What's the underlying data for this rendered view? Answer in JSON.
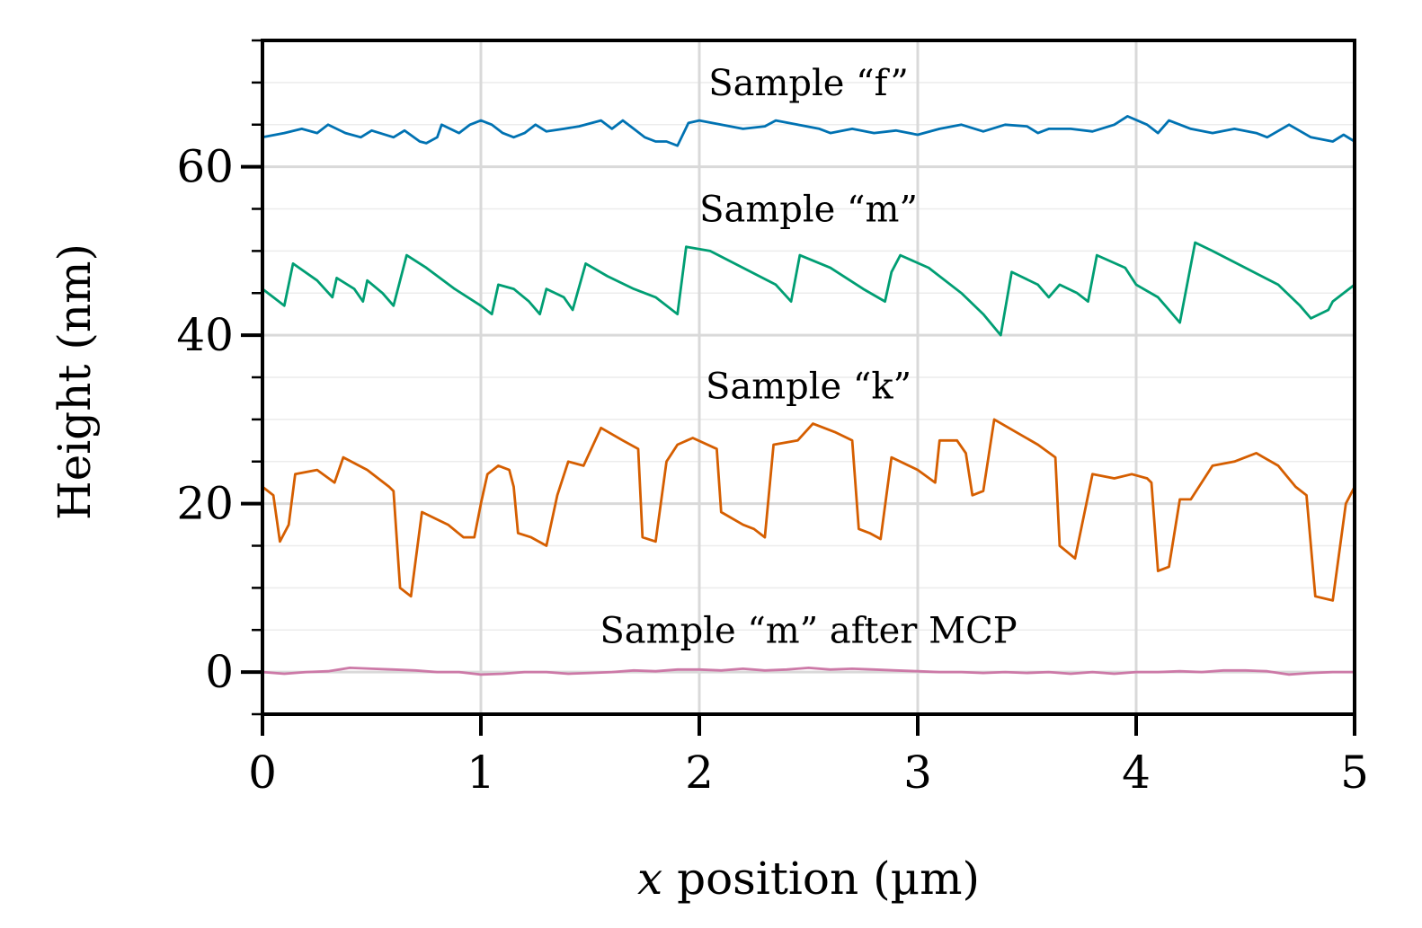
{
  "chart_data": {
    "type": "line",
    "xlabel": "x position (µm)",
    "xlabel_var": "x",
    "xlabel_rest": " position (µm)",
    "ylabel": "Height (nm)",
    "xlim": [
      0,
      5
    ],
    "ylim": [
      -5,
      75
    ],
    "x_ticks": [
      {
        "value": 0,
        "label": "0"
      },
      {
        "value": 1,
        "label": "1"
      },
      {
        "value": 2,
        "label": "2"
      },
      {
        "value": 3,
        "label": "3"
      },
      {
        "value": 4,
        "label": "4"
      },
      {
        "value": 5,
        "label": "5"
      }
    ],
    "y_ticks": [
      {
        "value": 0,
        "label": "0"
      },
      {
        "value": 20,
        "label": "20"
      },
      {
        "value": 40,
        "label": "40"
      },
      {
        "value": 60,
        "label": "60"
      }
    ],
    "y_minor_step": 5,
    "grid": true,
    "series": [
      {
        "name": "Sample “f”",
        "color": "#0072b2",
        "label_pos": {
          "x": 2.5,
          "y": 68.5
        },
        "points": [
          [
            0,
            63.5
          ],
          [
            0.1,
            64
          ],
          [
            0.18,
            64.5
          ],
          [
            0.25,
            64
          ],
          [
            0.3,
            65
          ],
          [
            0.38,
            64
          ],
          [
            0.45,
            63.5
          ],
          [
            0.5,
            64.3
          ],
          [
            0.6,
            63.5
          ],
          [
            0.65,
            64.3
          ],
          [
            0.72,
            63
          ],
          [
            0.75,
            62.8
          ],
          [
            0.8,
            63.5
          ],
          [
            0.82,
            65
          ],
          [
            0.9,
            64
          ],
          [
            0.95,
            65
          ],
          [
            1.0,
            65.5
          ],
          [
            1.05,
            65
          ],
          [
            1.1,
            64
          ],
          [
            1.15,
            63.5
          ],
          [
            1.2,
            64
          ],
          [
            1.25,
            65
          ],
          [
            1.3,
            64.2
          ],
          [
            1.38,
            64.5
          ],
          [
            1.45,
            64.8
          ],
          [
            1.55,
            65.5
          ],
          [
            1.6,
            64.5
          ],
          [
            1.65,
            65.5
          ],
          [
            1.7,
            64.5
          ],
          [
            1.75,
            63.5
          ],
          [
            1.8,
            63
          ],
          [
            1.85,
            63
          ],
          [
            1.9,
            62.5
          ],
          [
            1.95,
            65.2
          ],
          [
            2.0,
            65.5
          ],
          [
            2.1,
            65
          ],
          [
            2.2,
            64.5
          ],
          [
            2.3,
            64.8
          ],
          [
            2.35,
            65.5
          ],
          [
            2.45,
            65
          ],
          [
            2.55,
            64.5
          ],
          [
            2.6,
            64
          ],
          [
            2.7,
            64.5
          ],
          [
            2.8,
            64
          ],
          [
            2.9,
            64.3
          ],
          [
            3.0,
            63.8
          ],
          [
            3.1,
            64.5
          ],
          [
            3.2,
            65
          ],
          [
            3.3,
            64.2
          ],
          [
            3.4,
            65
          ],
          [
            3.5,
            64.8
          ],
          [
            3.55,
            64
          ],
          [
            3.6,
            64.5
          ],
          [
            3.7,
            64.5
          ],
          [
            3.8,
            64.2
          ],
          [
            3.9,
            65
          ],
          [
            3.96,
            66
          ],
          [
            4.05,
            65
          ],
          [
            4.1,
            64
          ],
          [
            4.15,
            65.5
          ],
          [
            4.25,
            64.5
          ],
          [
            4.35,
            64
          ],
          [
            4.45,
            64.5
          ],
          [
            4.55,
            64
          ],
          [
            4.6,
            63.5
          ],
          [
            4.7,
            65
          ],
          [
            4.8,
            63.5
          ],
          [
            4.9,
            63
          ],
          [
            4.95,
            63.8
          ],
          [
            5.0,
            63
          ]
        ]
      },
      {
        "name": "Sample “m”",
        "color": "#009e73",
        "label_pos": {
          "x": 2.5,
          "y": 53.5
        },
        "points": [
          [
            0,
            45.5
          ],
          [
            0.05,
            44.5
          ],
          [
            0.1,
            43.5
          ],
          [
            0.14,
            48.5
          ],
          [
            0.25,
            46.5
          ],
          [
            0.32,
            44.5
          ],
          [
            0.34,
            46.8
          ],
          [
            0.42,
            45.5
          ],
          [
            0.46,
            44
          ],
          [
            0.48,
            46.5
          ],
          [
            0.55,
            45
          ],
          [
            0.6,
            43.5
          ],
          [
            0.66,
            49.5
          ],
          [
            0.75,
            48
          ],
          [
            0.88,
            45.5
          ],
          [
            1.0,
            43.5
          ],
          [
            1.05,
            42.5
          ],
          [
            1.08,
            46
          ],
          [
            1.15,
            45.5
          ],
          [
            1.22,
            44
          ],
          [
            1.27,
            42.5
          ],
          [
            1.3,
            45.5
          ],
          [
            1.38,
            44.5
          ],
          [
            1.42,
            43
          ],
          [
            1.48,
            48.5
          ],
          [
            1.58,
            47
          ],
          [
            1.7,
            45.5
          ],
          [
            1.8,
            44.5
          ],
          [
            1.9,
            42.5
          ],
          [
            1.94,
            50.5
          ],
          [
            2.05,
            50
          ],
          [
            2.2,
            48
          ],
          [
            2.35,
            46
          ],
          [
            2.42,
            44
          ],
          [
            2.46,
            49.5
          ],
          [
            2.6,
            48
          ],
          [
            2.75,
            45.5
          ],
          [
            2.85,
            44
          ],
          [
            2.88,
            47.5
          ],
          [
            2.92,
            49.5
          ],
          [
            3.05,
            48
          ],
          [
            3.2,
            45
          ],
          [
            3.3,
            42.5
          ],
          [
            3.38,
            40
          ],
          [
            3.43,
            47.5
          ],
          [
            3.55,
            46
          ],
          [
            3.6,
            44.5
          ],
          [
            3.65,
            46
          ],
          [
            3.73,
            45
          ],
          [
            3.78,
            44
          ],
          [
            3.82,
            49.5
          ],
          [
            3.95,
            48
          ],
          [
            4.0,
            46
          ],
          [
            4.1,
            44.5
          ],
          [
            4.15,
            43
          ],
          [
            4.2,
            41.5
          ],
          [
            4.27,
            51
          ],
          [
            4.35,
            50
          ],
          [
            4.5,
            48
          ],
          [
            4.65,
            46
          ],
          [
            4.75,
            43.5
          ],
          [
            4.8,
            42
          ],
          [
            4.88,
            43
          ],
          [
            4.9,
            44
          ],
          [
            5.0,
            46
          ]
        ]
      },
      {
        "name": "Sample “k”",
        "color": "#d55e00",
        "label_pos": {
          "x": 2.5,
          "y": 32.5
        },
        "points": [
          [
            0,
            22
          ],
          [
            0.05,
            21
          ],
          [
            0.08,
            15.5
          ],
          [
            0.12,
            17.5
          ],
          [
            0.15,
            23.5
          ],
          [
            0.25,
            24
          ],
          [
            0.33,
            22.5
          ],
          [
            0.37,
            25.5
          ],
          [
            0.48,
            24
          ],
          [
            0.58,
            22
          ],
          [
            0.6,
            21.5
          ],
          [
            0.63,
            10
          ],
          [
            0.68,
            9
          ],
          [
            0.73,
            19
          ],
          [
            0.85,
            17.5
          ],
          [
            0.92,
            16
          ],
          [
            0.97,
            16
          ],
          [
            1.0,
            20
          ],
          [
            1.03,
            23.5
          ],
          [
            1.08,
            24.5
          ],
          [
            1.13,
            24
          ],
          [
            1.15,
            22
          ],
          [
            1.17,
            16.5
          ],
          [
            1.23,
            16
          ],
          [
            1.3,
            15
          ],
          [
            1.35,
            21
          ],
          [
            1.4,
            25
          ],
          [
            1.47,
            24.5
          ],
          [
            1.55,
            29
          ],
          [
            1.65,
            27.5
          ],
          [
            1.72,
            26.5
          ],
          [
            1.74,
            16
          ],
          [
            1.8,
            15.5
          ],
          [
            1.85,
            25
          ],
          [
            1.9,
            27
          ],
          [
            1.97,
            27.8
          ],
          [
            2.08,
            26.5
          ],
          [
            2.1,
            19
          ],
          [
            2.2,
            17.5
          ],
          [
            2.25,
            17
          ],
          [
            2.3,
            16
          ],
          [
            2.34,
            27
          ],
          [
            2.45,
            27.5
          ],
          [
            2.52,
            29.5
          ],
          [
            2.62,
            28.5
          ],
          [
            2.7,
            27.5
          ],
          [
            2.73,
            17
          ],
          [
            2.78,
            16.5
          ],
          [
            2.83,
            15.8
          ],
          [
            2.88,
            25.5
          ],
          [
            3.0,
            24
          ],
          [
            3.08,
            22.5
          ],
          [
            3.1,
            27.5
          ],
          [
            3.18,
            27.5
          ],
          [
            3.22,
            26
          ],
          [
            3.25,
            21
          ],
          [
            3.3,
            21.5
          ],
          [
            3.35,
            30
          ],
          [
            3.45,
            28.5
          ],
          [
            3.55,
            27
          ],
          [
            3.63,
            25.5
          ],
          [
            3.65,
            15
          ],
          [
            3.72,
            13.5
          ],
          [
            3.8,
            23.5
          ],
          [
            3.9,
            23
          ],
          [
            3.98,
            23.5
          ],
          [
            4.05,
            23
          ],
          [
            4.07,
            22.5
          ],
          [
            4.1,
            12
          ],
          [
            4.15,
            12.5
          ],
          [
            4.2,
            20.5
          ],
          [
            4.25,
            20.5
          ],
          [
            4.35,
            24.5
          ],
          [
            4.45,
            25
          ],
          [
            4.55,
            26
          ],
          [
            4.65,
            24.5
          ],
          [
            4.73,
            22
          ],
          [
            4.78,
            21
          ],
          [
            4.82,
            9
          ],
          [
            4.9,
            8.5
          ],
          [
            4.96,
            20
          ],
          [
            5.0,
            22
          ]
        ]
      },
      {
        "name": "Sample “m” after MCP",
        "color": "#cc79a7",
        "label_pos": {
          "x": 2.5,
          "y": 3.5
        },
        "points": [
          [
            0,
            0
          ],
          [
            0.1,
            -0.2
          ],
          [
            0.2,
            0
          ],
          [
            0.3,
            0.1
          ],
          [
            0.4,
            0.5
          ],
          [
            0.5,
            0.4
          ],
          [
            0.6,
            0.3
          ],
          [
            0.7,
            0.2
          ],
          [
            0.8,
            0
          ],
          [
            0.9,
            0
          ],
          [
            1.0,
            -0.3
          ],
          [
            1.1,
            -0.2
          ],
          [
            1.2,
            0
          ],
          [
            1.3,
            0
          ],
          [
            1.4,
            -0.2
          ],
          [
            1.5,
            -0.1
          ],
          [
            1.6,
            0
          ],
          [
            1.7,
            0.2
          ],
          [
            1.8,
            0.1
          ],
          [
            1.9,
            0.3
          ],
          [
            2.0,
            0.3
          ],
          [
            2.1,
            0.2
          ],
          [
            2.2,
            0.4
          ],
          [
            2.3,
            0.2
          ],
          [
            2.4,
            0.3
          ],
          [
            2.5,
            0.5
          ],
          [
            2.6,
            0.3
          ],
          [
            2.7,
            0.4
          ],
          [
            2.8,
            0.3
          ],
          [
            2.9,
            0.2
          ],
          [
            3.0,
            0.1
          ],
          [
            3.1,
            0
          ],
          [
            3.2,
            0
          ],
          [
            3.3,
            -0.1
          ],
          [
            3.4,
            0
          ],
          [
            3.5,
            -0.1
          ],
          [
            3.6,
            0
          ],
          [
            3.7,
            -0.2
          ],
          [
            3.8,
            0
          ],
          [
            3.9,
            -0.2
          ],
          [
            4.0,
            0
          ],
          [
            4.1,
            0
          ],
          [
            4.2,
            0.1
          ],
          [
            4.3,
            0
          ],
          [
            4.4,
            0.2
          ],
          [
            4.5,
            0.2
          ],
          [
            4.6,
            0.1
          ],
          [
            4.7,
            -0.3
          ],
          [
            4.8,
            -0.1
          ],
          [
            4.9,
            0
          ],
          [
            5.0,
            0
          ]
        ]
      }
    ]
  }
}
